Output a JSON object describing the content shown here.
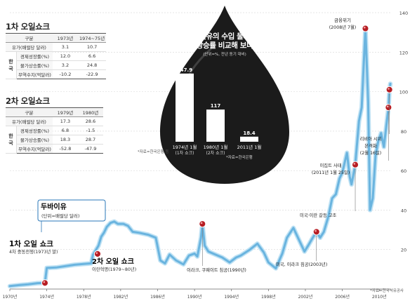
{
  "chart_data": {
    "type": "line",
    "x_ticks": [
      "1970년",
      "1974년",
      "1978년",
      "1982년",
      "1986년",
      "1990년",
      "1994년",
      "1998년",
      "2002년",
      "2006년",
      "2010년"
    ],
    "y_ticks": [
      20,
      40,
      60,
      80,
      100,
      120,
      140
    ],
    "ylim": [
      0,
      145
    ],
    "xlim": [
      1970,
      2011.2
    ],
    "series": [
      {
        "color": "#6ab4df",
        "points": [
          [
            1970.0,
            1.5
          ],
          [
            1971.0,
            2.0
          ],
          [
            1972.0,
            2.4
          ],
          [
            1973.0,
            3.0
          ],
          [
            1973.8,
            3.1
          ],
          [
            1974.0,
            10.7
          ],
          [
            1975.0,
            10.9
          ],
          [
            1976.0,
            11.6
          ],
          [
            1977.0,
            12.3
          ],
          [
            1978.0,
            12.7
          ],
          [
            1978.8,
            13.0
          ],
          [
            1979.0,
            17.3
          ],
          [
            1979.6,
            22.0
          ],
          [
            1979.9,
            26.5
          ],
          [
            1980.2,
            28.6
          ],
          [
            1980.5,
            31.5
          ],
          [
            1980.9,
            33.5
          ],
          [
            1981.3,
            34.2
          ],
          [
            1981.7,
            33.0
          ],
          [
            1982.3,
            33.0
          ],
          [
            1982.8,
            32.0
          ],
          [
            1983.3,
            29.0
          ],
          [
            1984.0,
            28.5
          ],
          [
            1985.0,
            27.5
          ],
          [
            1985.8,
            26.0
          ],
          [
            1986.3,
            14.5
          ],
          [
            1986.8,
            13.0
          ],
          [
            1987.3,
            17.5
          ],
          [
            1988.0,
            14.5
          ],
          [
            1988.8,
            12.5
          ],
          [
            1989.4,
            17.0
          ],
          [
            1990.0,
            18.0
          ],
          [
            1990.3,
            16.5
          ],
          [
            1990.7,
            26.0
          ],
          [
            1990.85,
            33.0
          ],
          [
            1991.1,
            22.0
          ],
          [
            1991.5,
            19.0
          ],
          [
            1992.0,
            18.0
          ],
          [
            1993.0,
            16.0
          ],
          [
            1993.8,
            13.5
          ],
          [
            1994.5,
            16.0
          ],
          [
            1995.0,
            17.0
          ],
          [
            1996.0,
            20.0
          ],
          [
            1996.8,
            23.0
          ],
          [
            1997.5,
            18.5
          ],
          [
            1998.0,
            13.5
          ],
          [
            1998.8,
            10.5
          ],
          [
            1999.5,
            18.0
          ],
          [
            2000.0,
            26.0
          ],
          [
            2000.7,
            31.0
          ],
          [
            2001.3,
            25.0
          ],
          [
            2001.9,
            19.0
          ],
          [
            2002.3,
            22.0
          ],
          [
            2002.8,
            26.0
          ],
          [
            2003.2,
            29.0
          ],
          [
            2003.6,
            26.0
          ],
          [
            2004.0,
            29.0
          ],
          [
            2004.5,
            37.0
          ],
          [
            2004.9,
            46.0
          ],
          [
            2005.3,
            48.0
          ],
          [
            2005.7,
            56.0
          ],
          [
            2006.0,
            59.0
          ],
          [
            2006.5,
            69.0
          ],
          [
            2006.8,
            57.0
          ],
          [
            2007.0,
            53.0
          ],
          [
            2007.4,
            63.0
          ],
          [
            2007.8,
            85.0
          ],
          [
            2008.1,
            92.0
          ],
          [
            2008.5,
            132.0
          ],
          [
            2008.8,
            95.0
          ],
          [
            2009.0,
            40.0
          ],
          [
            2009.3,
            46.0
          ],
          [
            2009.6,
            68.0
          ],
          [
            2009.9,
            75.0
          ],
          [
            2010.2,
            79.0
          ],
          [
            2010.5,
            72.0
          ],
          [
            2010.8,
            84.0
          ],
          [
            2011.0,
            92.0
          ],
          [
            2011.1,
            101.0
          ],
          [
            2011.2,
            104.0
          ]
        ]
      }
    ],
    "markers": [
      {
        "x": 1973.8,
        "y": 3.1
      },
      {
        "x": 1979.5,
        "y": 17.8
      },
      {
        "x": 1990.85,
        "y": 33.0
      },
      {
        "x": 2003.2,
        "y": 29.0
      },
      {
        "x": 2007.4,
        "y": 63.0
      },
      {
        "x": 2008.5,
        "y": 132.0
      },
      {
        "x": 2011.0,
        "y": 92.0
      },
      {
        "x": 2011.1,
        "y": 101.0
      }
    ],
    "annotations": {
      "shock1_title": "1차 오일 쇼크",
      "shock1_sub": "4차 중동전쟁(1973년 말)",
      "shock2_title": "2차 오일 쇼크",
      "shock2_sub": "이란혁명(1979~80년)",
      "dubai_title": "두바이유",
      "dubai_sub": "(단위=배럴당 달러)",
      "gulf": "이라크, 쿠웨이트 침공(1990년)",
      "iraq": "미국, 이라크 침공(2003년)",
      "iran": "미국·이란 갈등 고조",
      "crisis_title": "금융위기",
      "crisis_sub": "(2008년 7월)",
      "egypt_1": "이집트 사태",
      "egypt_2": "(2011년 1월 25일)",
      "libya_1": "리비아 시위",
      "libya_2": "본격화",
      "libya_3": "(2월 16일)"
    }
  },
  "drop": {
    "title1": "원유의 수입 물가",
    "title2": "상승률 비교해 보니",
    "unit": "(단위=%, 전년 동기 대비)",
    "source": "*자료=한국은행",
    "bars": [
      {
        "value": 247.9,
        "label1": "1974년 1월",
        "label2": "(1차 쇼크)"
      },
      {
        "value": 117.0,
        "label1": "1980년 1월",
        "label2": "(2차 쇼크)"
      },
      {
        "value": 18.4,
        "label1": "2011년 1월",
        "label2": ""
      }
    ]
  },
  "table1": {
    "title": "1차 오일쇼크",
    "headers": [
      "구분",
      "1973년",
      "1974~75년"
    ],
    "rows": [
      {
        "label": "유가(배럴당 달러)",
        "a": "3.1",
        "b": "10.7"
      },
      {
        "label": "경제성장률(%)",
        "a": "12.0",
        "b": "6.6"
      },
      {
        "label": "물가상승률(%)",
        "a": "3.2",
        "b": "24.8"
      },
      {
        "label": "무역수지(억달러)",
        "a": "-10.2",
        "b": "-22.9"
      }
    ],
    "section": "한국"
  },
  "table2": {
    "title": "2차 오일쇼크",
    "headers": [
      "구분",
      "1979년",
      "1980년"
    ],
    "rows": [
      {
        "label": "유가(배럴당 달러)",
        "a": "17.3",
        "b": "28.6"
      },
      {
        "label": "경제성장률(%)",
        "a": "6.8",
        "b": "-1.5"
      },
      {
        "label": "물가상승률(%)",
        "a": "18.3",
        "b": "28.7"
      },
      {
        "label": "무역수지(억달러)",
        "a": "-52.8",
        "b": "-47.9"
      }
    ],
    "section": "한국"
  },
  "source_table": "*자료=한국은행 등",
  "source_chart": "*자료=한국석유공사"
}
